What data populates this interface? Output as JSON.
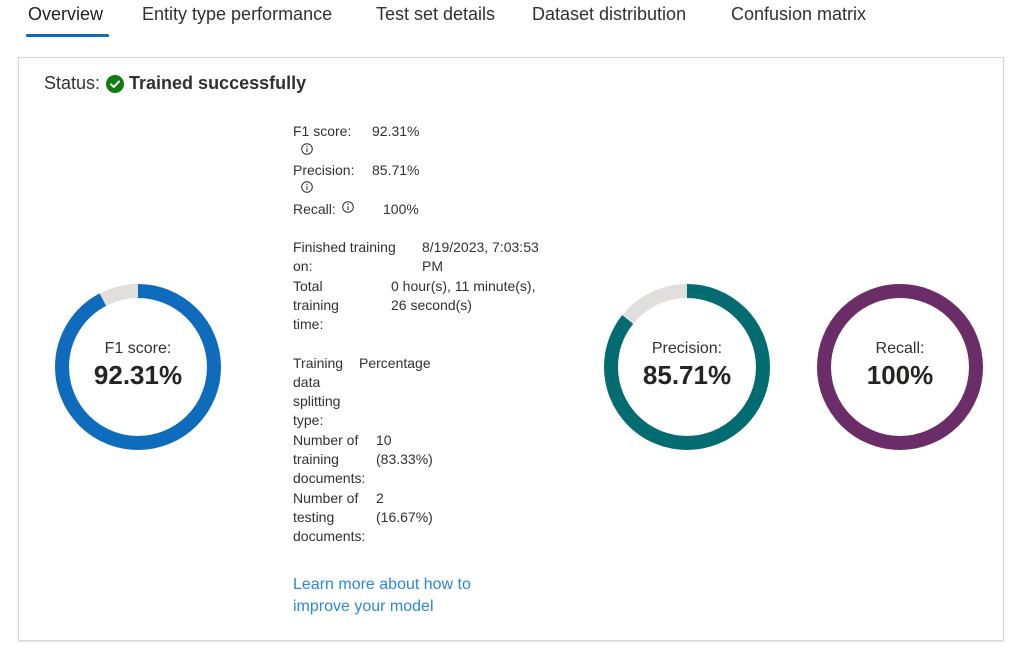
{
  "tabs": [
    {
      "label": "Overview",
      "active": true
    },
    {
      "label": "Entity type performance",
      "active": false
    },
    {
      "label": "Test set details",
      "active": false
    },
    {
      "label": "Dataset distribution",
      "active": false
    },
    {
      "label": "Confusion matrix",
      "active": false
    }
  ],
  "status": {
    "label": "Status:",
    "value": "Trained successfully",
    "icon": "check-circle-icon",
    "color": "#107c10"
  },
  "rings": {
    "f1": {
      "label": "F1 score:",
      "value": "92.31%",
      "fraction": 0.9231,
      "color": "#0f6cbd"
    },
    "precision": {
      "label": "Precision:",
      "value": "85.71%",
      "fraction": 0.8571,
      "color": "#036c70"
    },
    "recall": {
      "label": "Recall:",
      "value": "100%",
      "fraction": 1.0,
      "color": "#6b2d67"
    },
    "track_color": "#e1dfdd"
  },
  "metrics": {
    "f1": {
      "label": "F1 score:",
      "value": "92.31%"
    },
    "precision": {
      "label": "Precision:",
      "value": "85.71%"
    },
    "recall": {
      "label": "Recall:",
      "value": "100%"
    },
    "info_icon": "info-icon"
  },
  "training": {
    "finished_label_1": "Finished training",
    "finished_label_2": "on:",
    "finished_value_1": "8/19/2023, 7:03:53",
    "finished_value_2": "PM",
    "total_label_1": "Total",
    "total_label_2": "training",
    "total_label_3": "time:",
    "total_value_1": "0 hour(s), 11 minute(s),",
    "total_value_2": "26 second(s)",
    "split_label_1": "Training",
    "split_label_2": "data",
    "split_label_3": "splitting",
    "split_label_4": "type:",
    "split_value": "Percentage",
    "train_docs_label_1": "Number of",
    "train_docs_label_2": "training",
    "train_docs_label_3": "documents:",
    "train_docs_value_1": "10",
    "train_docs_value_2": "(83.33%)",
    "test_docs_label_1": "Number of",
    "test_docs_label_2": "testing",
    "test_docs_label_3": "documents:",
    "test_docs_value_1": "2",
    "test_docs_value_2": "(16.67%)"
  },
  "learn_more": {
    "line1": "Learn more about how to",
    "line2": "improve your model"
  }
}
